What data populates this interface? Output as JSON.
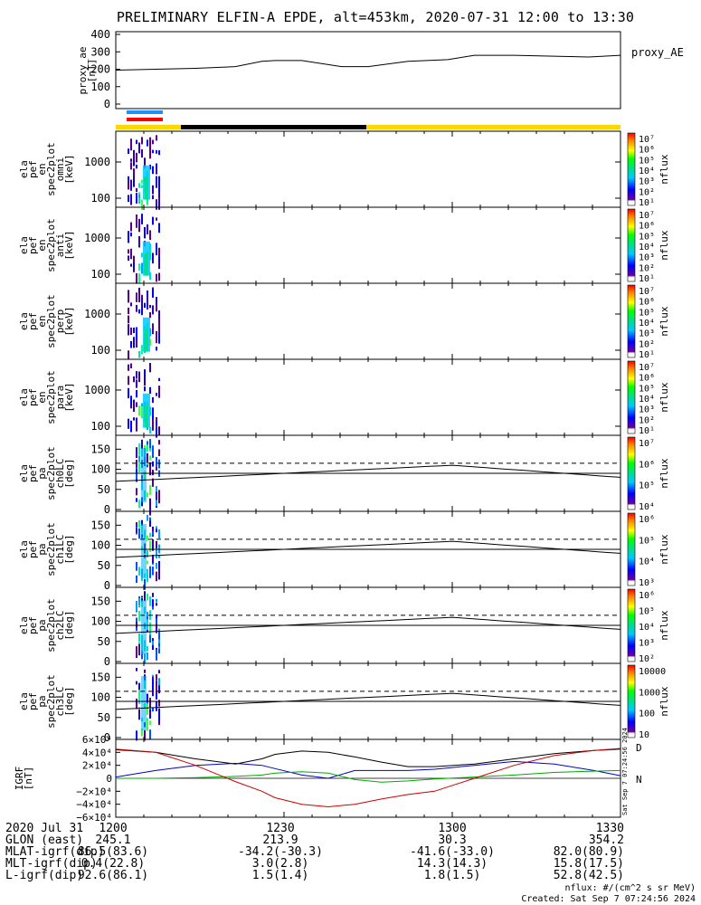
{
  "title": "PRELIMINARY ELFIN-A EPDE, alt=453km, 2020-07-31 12:00 to 13:30",
  "chart_data": [
    {
      "type": "line",
      "name": "proxy_ae",
      "ylabel_lines": [
        "proxy_ae",
        "[nT]"
      ],
      "legend": "proxy_AE",
      "ylim": [
        0,
        400
      ],
      "yticks": [
        "400",
        "300",
        "200",
        "100",
        "0"
      ],
      "x_minutes": [
        0,
        15,
        30,
        45,
        55,
        60,
        70,
        85,
        95,
        110,
        125,
        135,
        150,
        165,
        178,
        190
      ],
      "values": [
        195,
        200,
        205,
        215,
        245,
        250,
        250,
        215,
        215,
        245,
        255,
        280,
        280,
        275,
        270,
        280
      ]
    },
    {
      "type": "heatmap",
      "name": "omni",
      "ylabel_lines": [
        "ela",
        "pef",
        "en",
        "spec2plot",
        "omni",
        "[keV]"
      ],
      "yticks": [
        "1000",
        "100"
      ],
      "colorbar_ticks": [
        "10⁷",
        "10⁶",
        "10⁵",
        "10⁴",
        "10³",
        "10²",
        "10¹"
      ],
      "colorbar_label": "nflux"
    },
    {
      "type": "heatmap",
      "name": "anti",
      "ylabel_lines": [
        "ela",
        "pef",
        "en",
        "spec2plot",
        "anti",
        "[keV]"
      ],
      "yticks": [
        "1000",
        "100"
      ],
      "colorbar_ticks": [
        "10⁷",
        "10⁶",
        "10⁵",
        "10⁴",
        "10³",
        "10²",
        "10¹"
      ],
      "colorbar_label": "nflux"
    },
    {
      "type": "heatmap",
      "name": "perp",
      "ylabel_lines": [
        "ela",
        "pef",
        "en",
        "spec2plot",
        "perp",
        "[keV]"
      ],
      "yticks": [
        "1000",
        "100"
      ],
      "colorbar_ticks": [
        "10⁷",
        "10⁶",
        "10⁵",
        "10⁴",
        "10³",
        "10²",
        "10¹"
      ],
      "colorbar_label": "nflux"
    },
    {
      "type": "heatmap",
      "name": "para",
      "ylabel_lines": [
        "ela",
        "pef",
        "en",
        "spec2plot",
        "para",
        "[keV]"
      ],
      "yticks": [
        "1000",
        "100"
      ],
      "colorbar_ticks": [
        "10⁷",
        "10⁶",
        "10⁵",
        "10⁴",
        "10³",
        "10²",
        "10¹"
      ],
      "colorbar_label": "nflux"
    },
    {
      "type": "heatmap",
      "name": "ch0LC",
      "ylabel_lines": [
        "ela",
        "pef",
        "pa",
        "spec2plot",
        "ch0LC",
        "[deg]"
      ],
      "yticks": [
        "150",
        "100",
        "50",
        "0"
      ],
      "colorbar_ticks": [
        "10⁷",
        "10⁶",
        "10⁵",
        "10⁴"
      ],
      "colorbar_label": "nflux"
    },
    {
      "type": "heatmap",
      "name": "ch1LC",
      "ylabel_lines": [
        "ela",
        "pef",
        "pa",
        "spec2plot",
        "ch1LC",
        "[deg]"
      ],
      "yticks": [
        "150",
        "100",
        "50",
        "0"
      ],
      "colorbar_ticks": [
        "10⁶",
        "10⁵",
        "10⁴",
        "10³"
      ],
      "colorbar_label": "nflux"
    },
    {
      "type": "heatmap",
      "name": "ch2LC",
      "ylabel_lines": [
        "ela",
        "pef",
        "pa",
        "spec2plot",
        "ch2LC",
        "[deg]"
      ],
      "yticks": [
        "150",
        "100",
        "50",
        "0"
      ],
      "colorbar_ticks": [
        "10⁶",
        "10⁵",
        "10⁴",
        "10³",
        "10²"
      ],
      "colorbar_label": "nflux"
    },
    {
      "type": "heatmap",
      "name": "ch3LC",
      "ylabel_lines": [
        "ela",
        "pef",
        "pa",
        "spec2plot",
        "ch3LC",
        "[deg]"
      ],
      "yticks": [
        "150",
        "100",
        "50",
        "0"
      ],
      "colorbar_ticks": [
        "10000",
        "1000",
        "100",
        "10"
      ],
      "colorbar_label": "nflux"
    },
    {
      "type": "line",
      "name": "IGRF",
      "ylabel_lines": [
        "IGRF",
        "[nT]"
      ],
      "ylim": [
        -60000,
        60000
      ],
      "yticks": [
        "6×10⁴",
        "4×10⁴",
        "2×10⁴",
        "0",
        "−2×10⁴",
        "−4×10⁴",
        "−6×10⁴"
      ],
      "legend": [
        "D",
        "N"
      ],
      "x_minutes": [
        0,
        15,
        30,
        45,
        55,
        60,
        70,
        80,
        90,
        100,
        110,
        120,
        135,
        150,
        165,
        180,
        190
      ],
      "series": [
        {
          "color": "#000000",
          "values": [
            44000,
            40000,
            30000,
            22000,
            30000,
            37000,
            42000,
            40000,
            33000,
            25000,
            18000,
            18000,
            22000,
            30000,
            38000,
            43000,
            45000
          ]
        },
        {
          "color": "#0000cc",
          "values": [
            2000,
            12000,
            20000,
            23000,
            20000,
            15000,
            5000,
            0,
            12000,
            12000,
            12000,
            14000,
            20000,
            26000,
            22000,
            12000,
            4000
          ]
        },
        {
          "color": "#00aa00",
          "values": [
            0,
            0,
            1000,
            3000,
            5000,
            8000,
            10000,
            8000,
            -2000,
            -6000,
            -4000,
            -1000,
            2000,
            5000,
            9000,
            11000,
            12000
          ]
        },
        {
          "color": "#cc0000",
          "values": [
            45000,
            40000,
            20000,
            -5000,
            -20000,
            -30000,
            -40000,
            -44000,
            -40000,
            -32000,
            -25000,
            -20000,
            0,
            20000,
            35000,
            43000,
            46000
          ]
        }
      ]
    }
  ],
  "bottom_labels": {
    "rows": [
      {
        "label": "2020 Jul 31",
        "values": [
          "1200",
          "1230",
          "1300",
          "1330"
        ]
      },
      {
        "label": "GLON (east)",
        "values": [
          "245.1",
          "213.9",
          "30.3",
          "354.2"
        ]
      },
      {
        "label": "MLAT-igrf(dip)",
        "values": [
          "86.5(83.6)",
          "-34.2(-30.3)",
          "-41.6(-33.0)",
          "82.0(80.9)"
        ]
      },
      {
        "label": "MLT-igrf(dip)",
        "values": [
          "0.4(22.8)",
          "3.0(2.8)",
          "14.3(14.3)",
          "15.8(17.5)"
        ]
      },
      {
        "label": "L-igrf(dip)",
        "values": [
          "92.6(86.1)",
          "1.5(1.4)",
          "1.8(1.5)",
          "52.8(42.5)"
        ]
      }
    ]
  },
  "footer": {
    "units": "nflux: #/(cm^2 s sr MeV)",
    "created": "Created: Sat Sep  7 07:24:56 2024",
    "side_stamp": "Sat Sep  7 07:24:56 2024"
  }
}
